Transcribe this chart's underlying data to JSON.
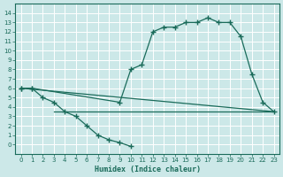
{
  "xlabel": "Humidex (Indice chaleur)",
  "background_color": "#cce8e8",
  "grid_color": "#ffffff",
  "line_color": "#1a6b5a",
  "xlim": [
    -0.5,
    23.5
  ],
  "ylim": [
    -1,
    15
  ],
  "xticks": [
    0,
    1,
    2,
    3,
    4,
    5,
    6,
    7,
    8,
    9,
    10,
    11,
    12,
    13,
    14,
    15,
    16,
    17,
    18,
    19,
    20,
    21,
    22,
    23
  ],
  "yticks": [
    0,
    1,
    2,
    3,
    4,
    5,
    6,
    7,
    8,
    9,
    10,
    11,
    12,
    13,
    14
  ],
  "line1_x": [
    0,
    1,
    2,
    3,
    4,
    5,
    6,
    7,
    8,
    9,
    10
  ],
  "line1_y": [
    6.0,
    6.0,
    5.0,
    4.5,
    3.5,
    3.0,
    2.0,
    1.0,
    0.5,
    0.2,
    -0.2
  ],
  "line2_x": [
    0,
    1,
    9,
    10,
    11,
    12,
    13,
    14,
    15,
    16,
    17,
    18,
    19,
    20,
    21,
    22,
    23
  ],
  "line2_y": [
    6.0,
    6.0,
    4.5,
    8.0,
    8.5,
    12.0,
    12.5,
    12.5,
    13.0,
    13.0,
    13.5,
    13.0,
    13.0,
    11.5,
    7.5,
    4.5,
    3.5
  ],
  "line3_x": [
    0,
    23
  ],
  "line3_y": [
    6.0,
    3.5
  ],
  "hline_x": [
    3,
    23
  ],
  "hline_y": [
    3.5,
    3.5
  ]
}
